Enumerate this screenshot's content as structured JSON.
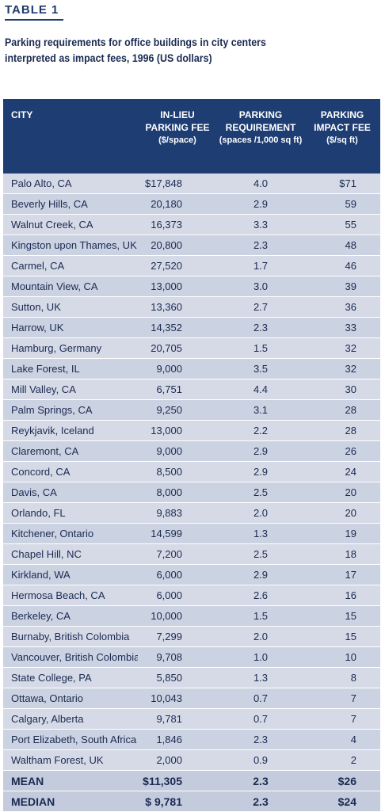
{
  "header": {
    "table_label": "TABLE 1",
    "caption_line1": "Parking requirements for office buildings in city centers",
    "caption_line2": "interpreted as impact fees, 1996 (US dollars)"
  },
  "columns": {
    "city": "CITY",
    "fee_line1": "IN-LIEU",
    "fee_line2": "PARKING FEE",
    "fee_unit": "($/space)",
    "req_line1": "PARKING",
    "req_line2": "REQUIREMENT",
    "req_unit": "(spaces /1,000 sq ft)",
    "impact_line1": "PARKING",
    "impact_line2": "IMPACT FEE",
    "impact_unit": "($/sq ft)"
  },
  "rows": [
    {
      "city": "Palo Alto, CA",
      "fee": "$17,848",
      "req": "4.0",
      "impact": "$71"
    },
    {
      "city": "Beverly Hills, CA",
      "fee": "20,180",
      "req": "2.9",
      "impact": "59"
    },
    {
      "city": "Walnut Creek, CA",
      "fee": "16,373",
      "req": "3.3",
      "impact": "55"
    },
    {
      "city": "Kingston upon Thames, UK",
      "fee": "20,800",
      "req": "2.3",
      "impact": "48"
    },
    {
      "city": "Carmel, CA",
      "fee": "27,520",
      "req": "1.7",
      "impact": "46"
    },
    {
      "city": "Mountain View, CA",
      "fee": "13,000",
      "req": "3.0",
      "impact": "39"
    },
    {
      "city": "Sutton, UK",
      "fee": "13,360",
      "req": "2.7",
      "impact": "36"
    },
    {
      "city": "Harrow, UK",
      "fee": "14,352",
      "req": "2.3",
      "impact": "33"
    },
    {
      "city": "Hamburg, Germany",
      "fee": "20,705",
      "req": "1.5",
      "impact": "32"
    },
    {
      "city": "Lake Forest, IL",
      "fee": "9,000",
      "req": "3.5",
      "impact": "32"
    },
    {
      "city": "Mill Valley, CA",
      "fee": "6,751",
      "req": "4.4",
      "impact": "30"
    },
    {
      "city": "Palm Springs, CA",
      "fee": "9,250",
      "req": "3.1",
      "impact": "28"
    },
    {
      "city": "Reykjavik, Iceland",
      "fee": "13,000",
      "req": "2.2",
      "impact": "28"
    },
    {
      "city": "Claremont, CA",
      "fee": "9,000",
      "req": "2.9",
      "impact": "26"
    },
    {
      "city": "Concord, CA",
      "fee": "8,500",
      "req": "2.9",
      "impact": "24"
    },
    {
      "city": "Davis, CA",
      "fee": "8,000",
      "req": "2.5",
      "impact": "20"
    },
    {
      "city": "Orlando, FL",
      "fee": "9,883",
      "req": "2.0",
      "impact": "20"
    },
    {
      "city": "Kitchener, Ontario",
      "fee": "14,599",
      "req": "1.3",
      "impact": "19"
    },
    {
      "city": "Chapel Hill, NC",
      "fee": "7,200",
      "req": "2.5",
      "impact": "18"
    },
    {
      "city": "Kirkland, WA",
      "fee": "6,000",
      "req": "2.9",
      "impact": "17"
    },
    {
      "city": "Hermosa Beach, CA",
      "fee": "6,000",
      "req": "2.6",
      "impact": "16"
    },
    {
      "city": "Berkeley, CA",
      "fee": "10,000",
      "req": "1.5",
      "impact": "15"
    },
    {
      "city": "Burnaby, British Colombia",
      "fee": "7,299",
      "req": "2.0",
      "impact": "15"
    },
    {
      "city": "Vancouver, British Colombia",
      "fee": "9,708",
      "req": "1.0",
      "impact": "10"
    },
    {
      "city": "State College, PA",
      "fee": "5,850",
      "req": "1.3",
      "impact": "8"
    },
    {
      "city": "Ottawa, Ontario",
      "fee": "10,043",
      "req": "0.7",
      "impact": "7"
    },
    {
      "city": "Calgary, Alberta",
      "fee": "9,781",
      "req": "0.7",
      "impact": "7"
    },
    {
      "city": "Port Elizabeth, South Africa",
      "fee": "1,846",
      "req": "2.3",
      "impact": "4"
    },
    {
      "city": "Waltham Forest, UK",
      "fee": "2,000",
      "req": "0.9",
      "impact": "2"
    }
  ],
  "summary": [
    {
      "city": "MEAN",
      "fee": "$11,305",
      "req": "2.3",
      "impact": "$26"
    },
    {
      "city": "MEDIAN",
      "fee": "$ 9,781",
      "req": "2.3",
      "impact": "$24"
    }
  ],
  "colors": {
    "header_bg": "#1d3d73",
    "row_bg": "#d5dae6",
    "text": "#1b2a52"
  }
}
